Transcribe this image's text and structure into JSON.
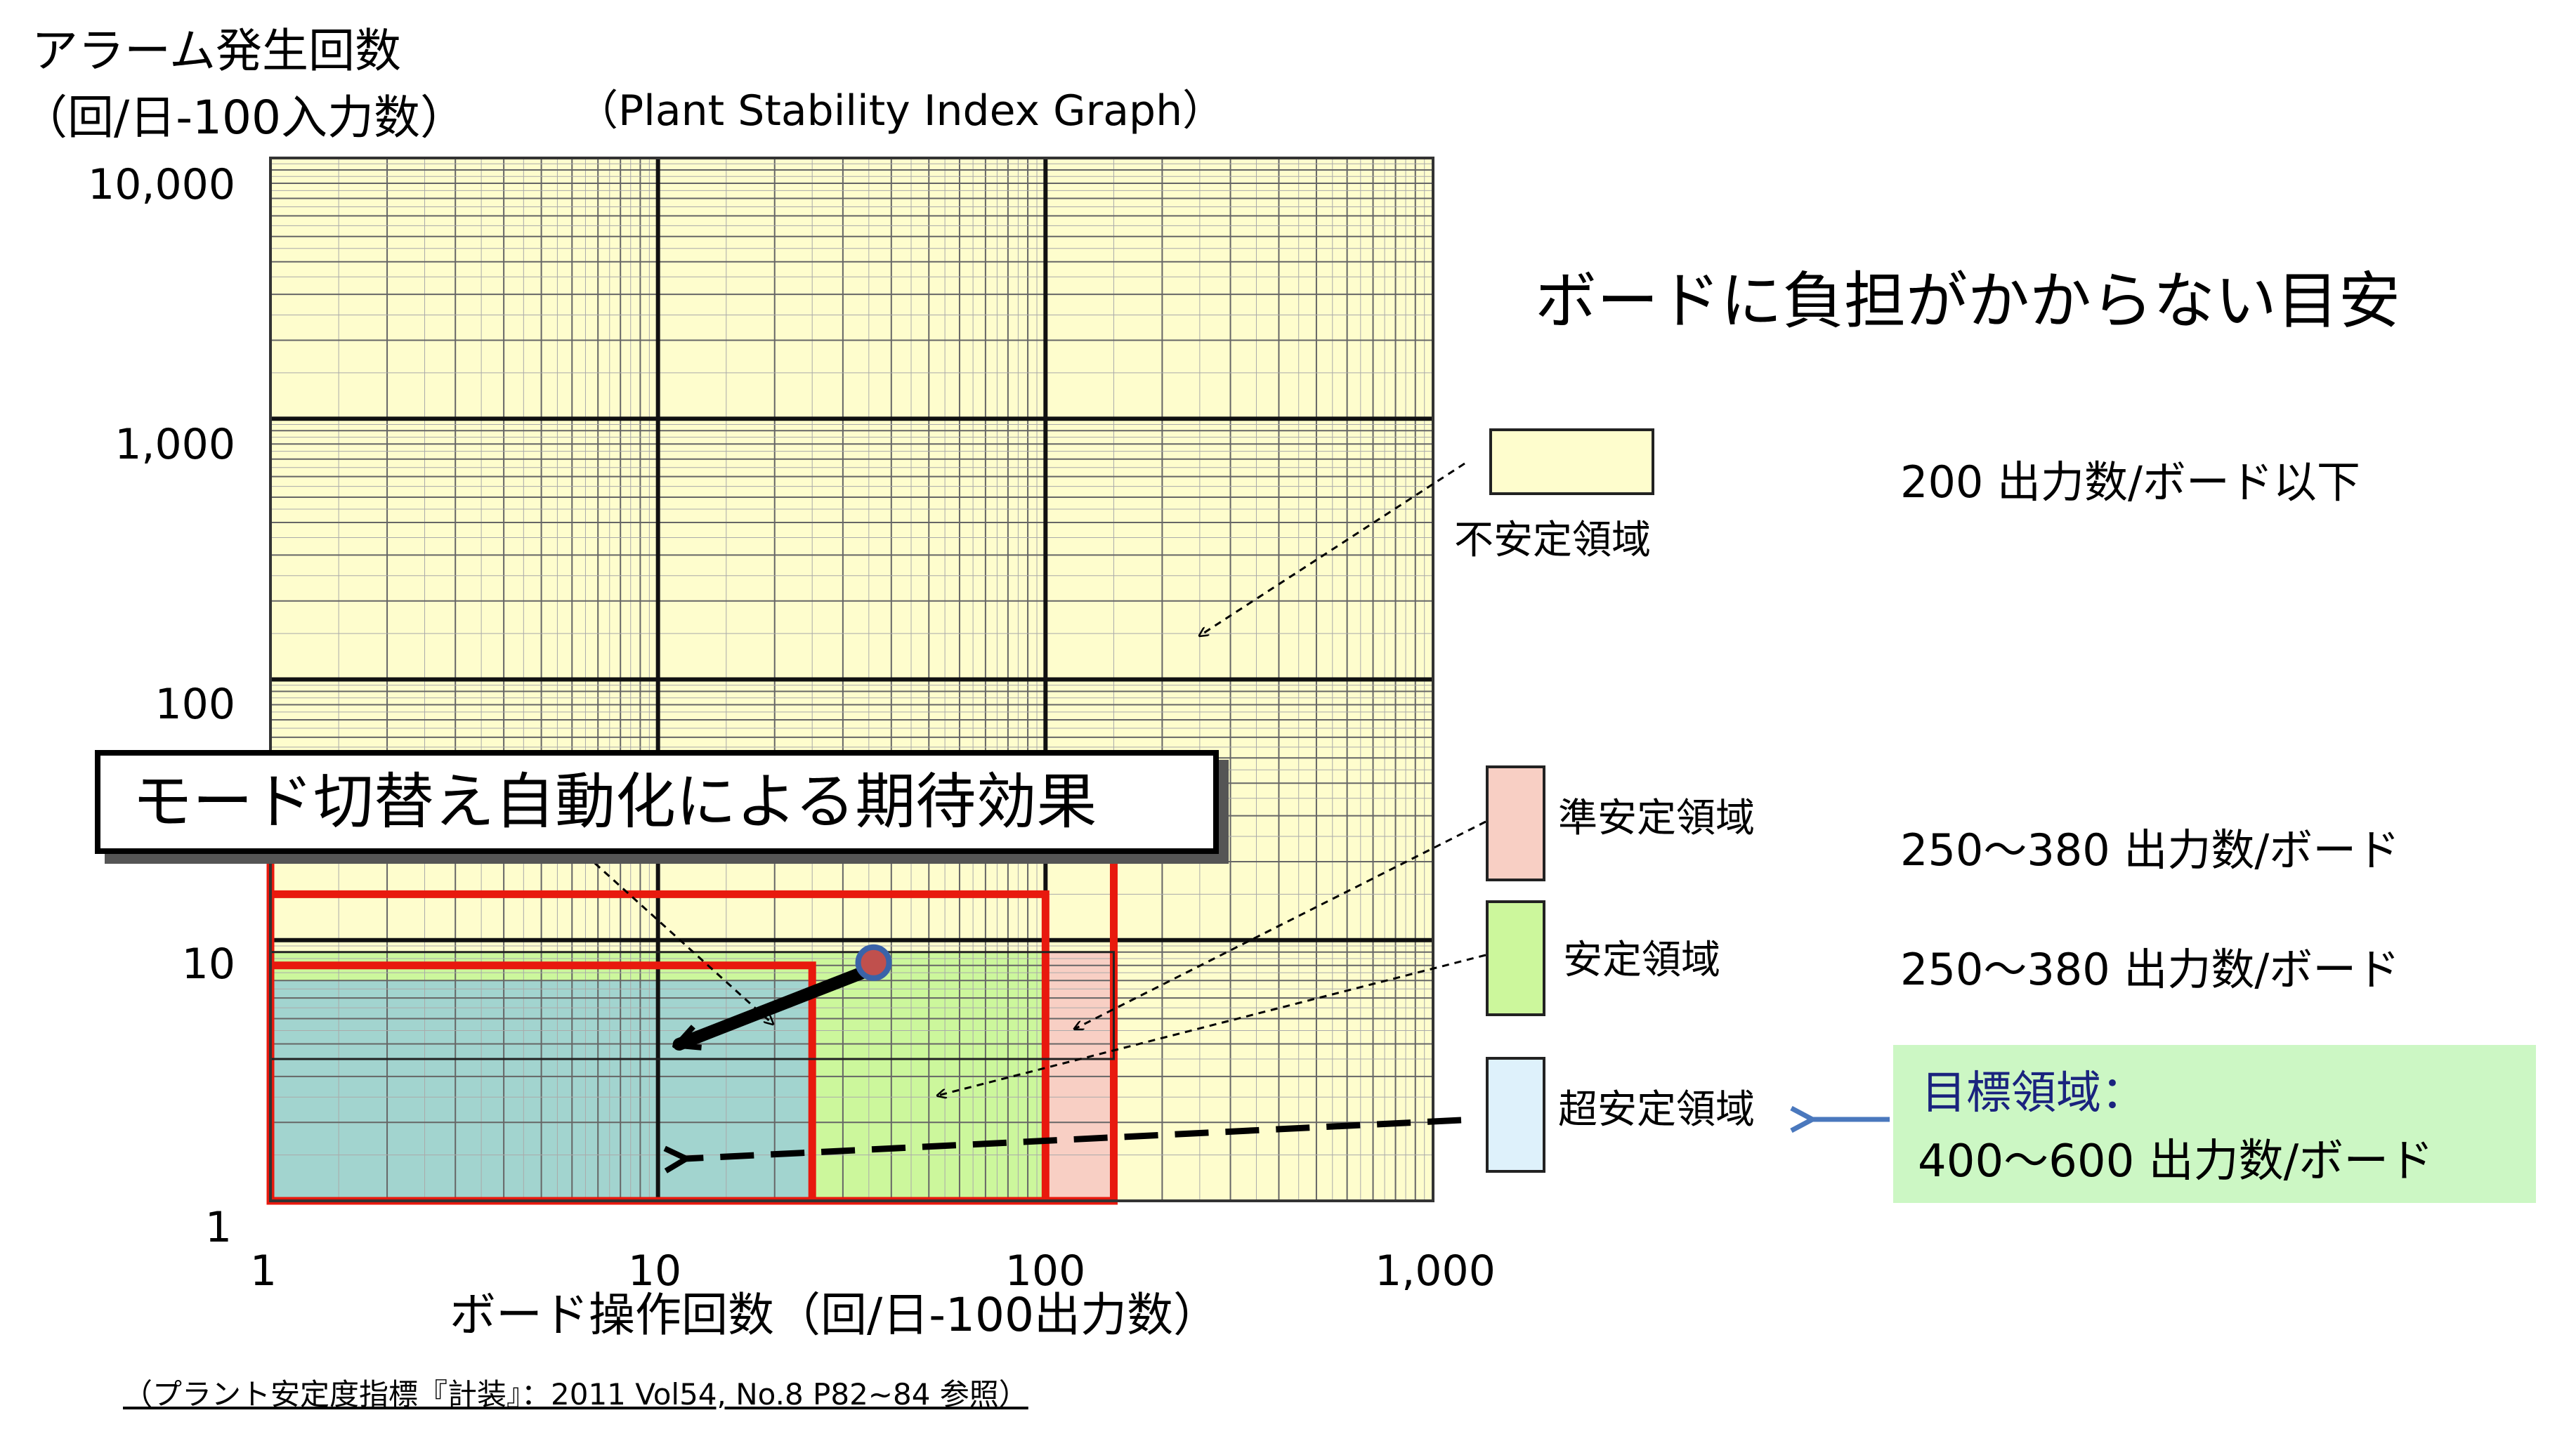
{
  "chart_data": {
    "type": "scatter",
    "subtitle": "（Plant Stability Index Graph）",
    "ylabel_line1": "アラーム発生回数",
    "ylabel_line2": "（回/日-100入力数）",
    "xlabel": "ボード操作回数（回/日-100出力数）",
    "x_scale": "log",
    "y_scale": "log",
    "xlim": [
      1,
      1000
    ],
    "ylim": [
      1,
      10000
    ],
    "grid": true,
    "x_ticks": [
      "1",
      "10",
      "100",
      "1,000"
    ],
    "y_ticks": [
      "1",
      "10",
      "100",
      "1,000",
      "10,000"
    ],
    "regions": [
      {
        "name": "不安定領域",
        "x": [
          1,
          1000
        ],
        "y": [
          1,
          10000
        ],
        "color": "#fefdcd"
      },
      {
        "name": "準安定領域",
        "x": [
          1,
          150
        ],
        "y": [
          1,
          9
        ],
        "color": "#f8cfc4"
      },
      {
        "name": "安定領域",
        "x": [
          1,
          100
        ],
        "y": [
          1,
          9
        ],
        "color": "#ccf79c"
      },
      {
        "name": "超安定領域",
        "x": [
          1,
          25
        ],
        "y": [
          1,
          7
        ],
        "color": "#a2d4cf"
      }
    ],
    "outlines": [
      {
        "x": [
          1,
          150
        ],
        "y": [
          1,
          25
        ],
        "color": "#e8190e"
      },
      {
        "x": [
          1,
          100
        ],
        "y": [
          1,
          15
        ],
        "color": "#e8190e"
      },
      {
        "x": [
          1,
          25
        ],
        "y": [
          1,
          8
        ],
        "color": "#e8190e"
      },
      {
        "x": [
          1,
          150
        ],
        "y": [
          3.5,
          9
        ],
        "color": "#222222"
      }
    ],
    "point": {
      "x": 36,
      "y": 8.2,
      "color": "#c0504d",
      "stroke": "#3a63a8"
    },
    "arrow": {
      "from": [
        36,
        8.2
      ],
      "to": [
        10,
        3.7
      ]
    }
  },
  "callout": {
    "text": "モード切替え自動化による期待効果"
  },
  "guide": {
    "title": "ボードに負担がかからない目安"
  },
  "legend": [
    {
      "label": "不安定領域",
      "note": "200 出力数/ボード以下",
      "color": "#fefdcd"
    },
    {
      "label": "準安定領域",
      "note": "250～380 出力数/ボード",
      "color": "#f8cfc4"
    },
    {
      "label": "安定領域",
      "note": "250～380  出力数/ボード",
      "color": "#ccf79c"
    },
    {
      "label": "超安定領域",
      "note": "",
      "color": "#def1fb"
    }
  ],
  "target": {
    "title": "目標領域：",
    "range": "400～600  出力数/ボード"
  },
  "source": "（プラント安定度指標『計装』：2011 Vol54, No.8 P82~84 参照）"
}
